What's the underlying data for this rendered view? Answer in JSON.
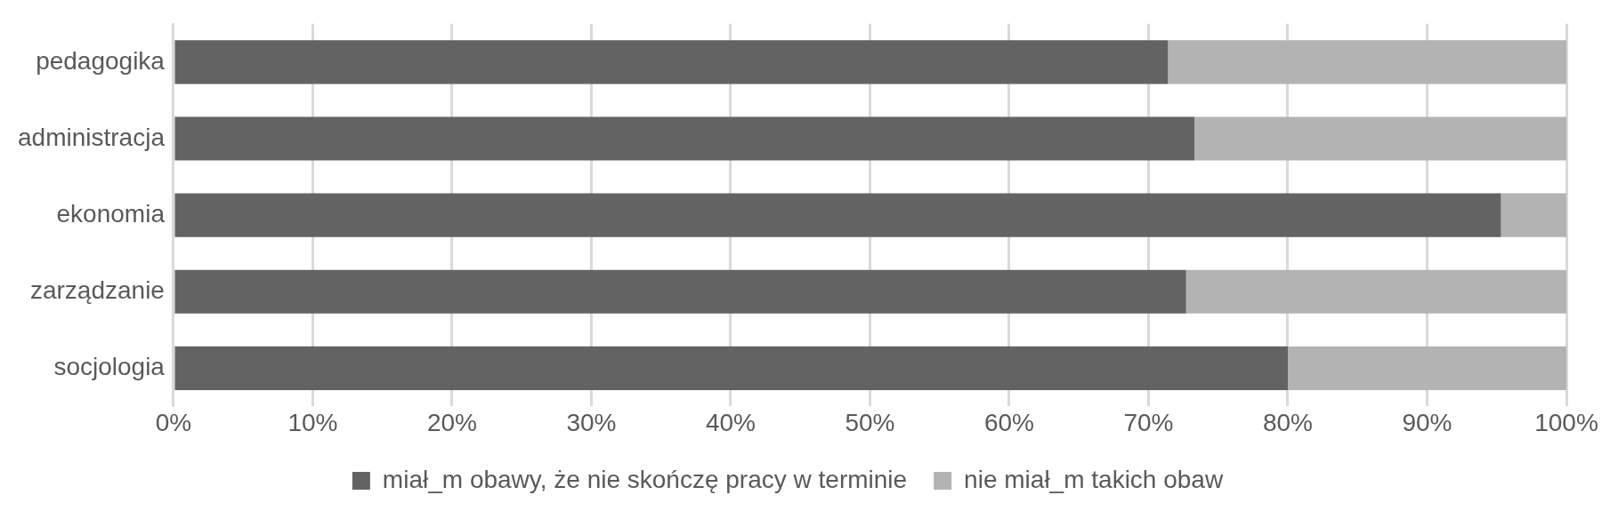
{
  "chart_data": {
    "type": "bar",
    "orientation": "horizontal",
    "stacked": true,
    "categories": [
      "pedagogika",
      "administracja",
      "ekonomia",
      "zarządzanie",
      "socjologia"
    ],
    "series": [
      {
        "name": "miał_m obawy, że nie skończę pracy w terminie",
        "color": "#636363",
        "values": [
          71.4,
          73.3,
          95.3,
          72.7,
          80.0
        ]
      },
      {
        "name": "nie miał_m takich obaw",
        "color": "#b3b3b3",
        "values": [
          28.6,
          26.7,
          4.7,
          27.3,
          20.0
        ]
      }
    ],
    "xlim": [
      0,
      100
    ],
    "xticks": [
      {
        "value": 0,
        "label": "0%"
      },
      {
        "value": 10,
        "label": "10%"
      },
      {
        "value": 20,
        "label": "20%"
      },
      {
        "value": 30,
        "label": "30%"
      },
      {
        "value": 40,
        "label": "40%"
      },
      {
        "value": 50,
        "label": "50%"
      },
      {
        "value": 60,
        "label": "60%"
      },
      {
        "value": 70,
        "label": "70%"
      },
      {
        "value": 80,
        "label": "80%"
      },
      {
        "value": 90,
        "label": "90%"
      },
      {
        "value": 100,
        "label": "100%"
      }
    ],
    "grid": "x",
    "legend": "bottom"
  }
}
